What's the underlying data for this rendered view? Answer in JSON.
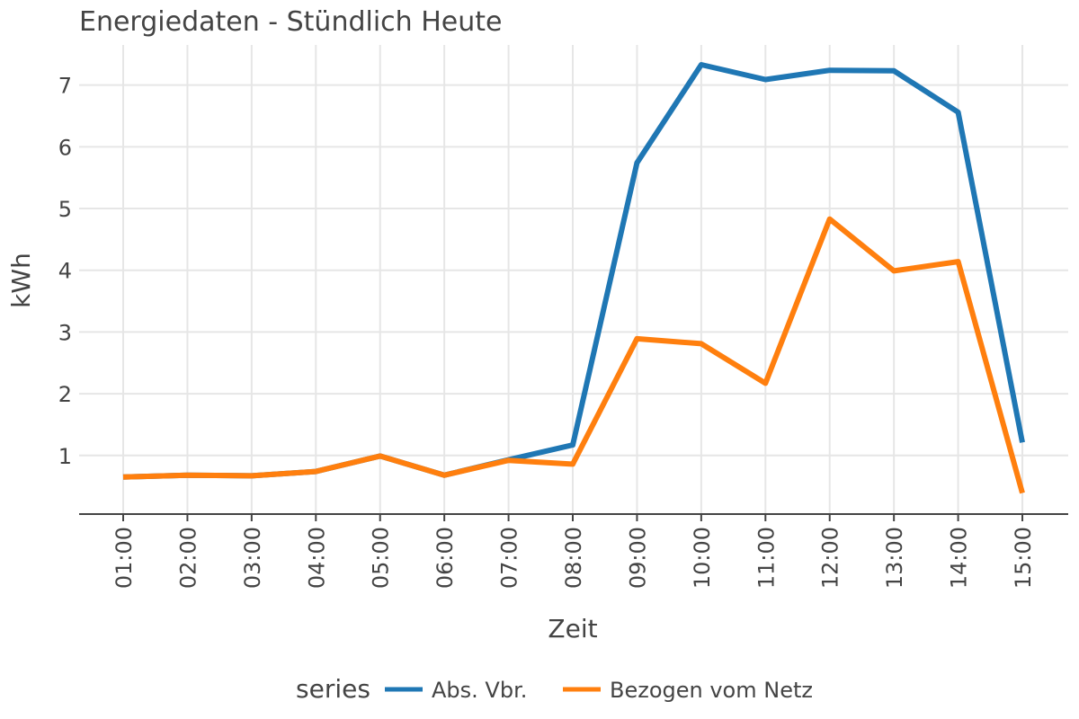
{
  "chart_data": {
    "type": "line",
    "title": "Energiedaten - Stündlich Heute",
    "xlabel": "Zeit",
    "ylabel": "kWh",
    "categories": [
      "01:00",
      "02:00",
      "03:00",
      "04:00",
      "05:00",
      "06:00",
      "07:00",
      "08:00",
      "09:00",
      "10:00",
      "11:00",
      "12:00",
      "13:00",
      "14:00",
      "15:00"
    ],
    "y_ticks": [
      1,
      2,
      3,
      4,
      5,
      6,
      7
    ],
    "ylim": [
      0.05,
      7.65
    ],
    "grid": true,
    "legend": {
      "title": "series",
      "position": "bottom"
    },
    "series": [
      {
        "name": "Abs. Vbr.",
        "color": "#1f77b4",
        "values": [
          0.65,
          0.68,
          0.67,
          0.74,
          0.99,
          0.68,
          0.93,
          1.17,
          5.74,
          7.33,
          7.09,
          7.24,
          7.23,
          6.56,
          1.21
        ]
      },
      {
        "name": "Bezogen vom Netz",
        "color": "#ff7f0e",
        "values": [
          0.65,
          0.68,
          0.67,
          0.74,
          0.99,
          0.68,
          0.92,
          0.86,
          2.89,
          2.81,
          2.17,
          4.83,
          3.99,
          4.14,
          0.39
        ]
      }
    ]
  }
}
